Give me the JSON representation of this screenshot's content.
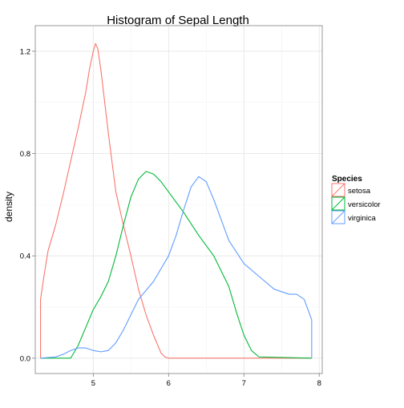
{
  "chart_data": {
    "type": "line",
    "title": "Histogram of Sepal Length",
    "xlabel": "",
    "ylabel": "density",
    "xlim": [
      4.23,
      8.04
    ],
    "ylim": [
      -0.06,
      1.3
    ],
    "x_ticks": [
      5,
      6,
      7,
      8
    ],
    "x_tick_labels": [
      "5",
      "6",
      "7",
      "8"
    ],
    "y_ticks": [
      0.0,
      0.4,
      0.8,
      1.2
    ],
    "y_tick_labels": [
      "0.0",
      "0.4",
      "0.8",
      "1.2"
    ],
    "grid": true,
    "legend": {
      "title": "Species",
      "position": "right"
    },
    "series": [
      {
        "name": "setosa",
        "color": "#F8766D",
        "points": [
          [
            4.3,
            0.0
          ],
          [
            4.3,
            0.23
          ],
          [
            4.35,
            0.33
          ],
          [
            4.4,
            0.42
          ],
          [
            4.5,
            0.52
          ],
          [
            4.6,
            0.64
          ],
          [
            4.7,
            0.77
          ],
          [
            4.8,
            0.9
          ],
          [
            4.9,
            1.04
          ],
          [
            4.95,
            1.13
          ],
          [
            5.0,
            1.2
          ],
          [
            5.03,
            1.23
          ],
          [
            5.06,
            1.21
          ],
          [
            5.1,
            1.13
          ],
          [
            5.2,
            0.88
          ],
          [
            5.3,
            0.65
          ],
          [
            5.4,
            0.52
          ],
          [
            5.5,
            0.4
          ],
          [
            5.6,
            0.27
          ],
          [
            5.7,
            0.17
          ],
          [
            5.8,
            0.09
          ],
          [
            5.9,
            0.02
          ],
          [
            5.95,
            0.005
          ],
          [
            6.0,
            0.0
          ],
          [
            7.9,
            0.0
          ]
        ]
      },
      {
        "name": "versicolor",
        "color": "#00BA38",
        "points": [
          [
            4.3,
            0.0
          ],
          [
            4.7,
            0.0
          ],
          [
            4.8,
            0.05
          ],
          [
            4.9,
            0.12
          ],
          [
            5.0,
            0.19
          ],
          [
            5.1,
            0.24
          ],
          [
            5.2,
            0.3
          ],
          [
            5.3,
            0.4
          ],
          [
            5.4,
            0.52
          ],
          [
            5.5,
            0.63
          ],
          [
            5.6,
            0.7
          ],
          [
            5.7,
            0.73
          ],
          [
            5.8,
            0.72
          ],
          [
            5.9,
            0.69
          ],
          [
            6.0,
            0.65
          ],
          [
            6.2,
            0.57
          ],
          [
            6.4,
            0.48
          ],
          [
            6.6,
            0.4
          ],
          [
            6.8,
            0.28
          ],
          [
            6.9,
            0.18
          ],
          [
            7.0,
            0.09
          ],
          [
            7.1,
            0.03
          ],
          [
            7.2,
            0.005
          ],
          [
            7.9,
            0.0
          ]
        ]
      },
      {
        "name": "virginica",
        "color": "#619CFF",
        "points": [
          [
            4.3,
            0.0
          ],
          [
            4.5,
            0.005
          ],
          [
            4.6,
            0.015
          ],
          [
            4.7,
            0.03
          ],
          [
            4.8,
            0.04
          ],
          [
            4.9,
            0.04
          ],
          [
            5.0,
            0.03
          ],
          [
            5.1,
            0.025
          ],
          [
            5.2,
            0.03
          ],
          [
            5.3,
            0.06
          ],
          [
            5.4,
            0.11
          ],
          [
            5.5,
            0.17
          ],
          [
            5.6,
            0.23
          ],
          [
            5.8,
            0.3
          ],
          [
            6.0,
            0.4
          ],
          [
            6.1,
            0.48
          ],
          [
            6.2,
            0.58
          ],
          [
            6.3,
            0.67
          ],
          [
            6.4,
            0.71
          ],
          [
            6.5,
            0.69
          ],
          [
            6.6,
            0.62
          ],
          [
            6.8,
            0.46
          ],
          [
            7.0,
            0.37
          ],
          [
            7.2,
            0.32
          ],
          [
            7.4,
            0.27
          ],
          [
            7.6,
            0.25
          ],
          [
            7.7,
            0.25
          ],
          [
            7.8,
            0.23
          ],
          [
            7.9,
            0.15
          ],
          [
            7.9,
            0.0
          ]
        ]
      }
    ]
  }
}
